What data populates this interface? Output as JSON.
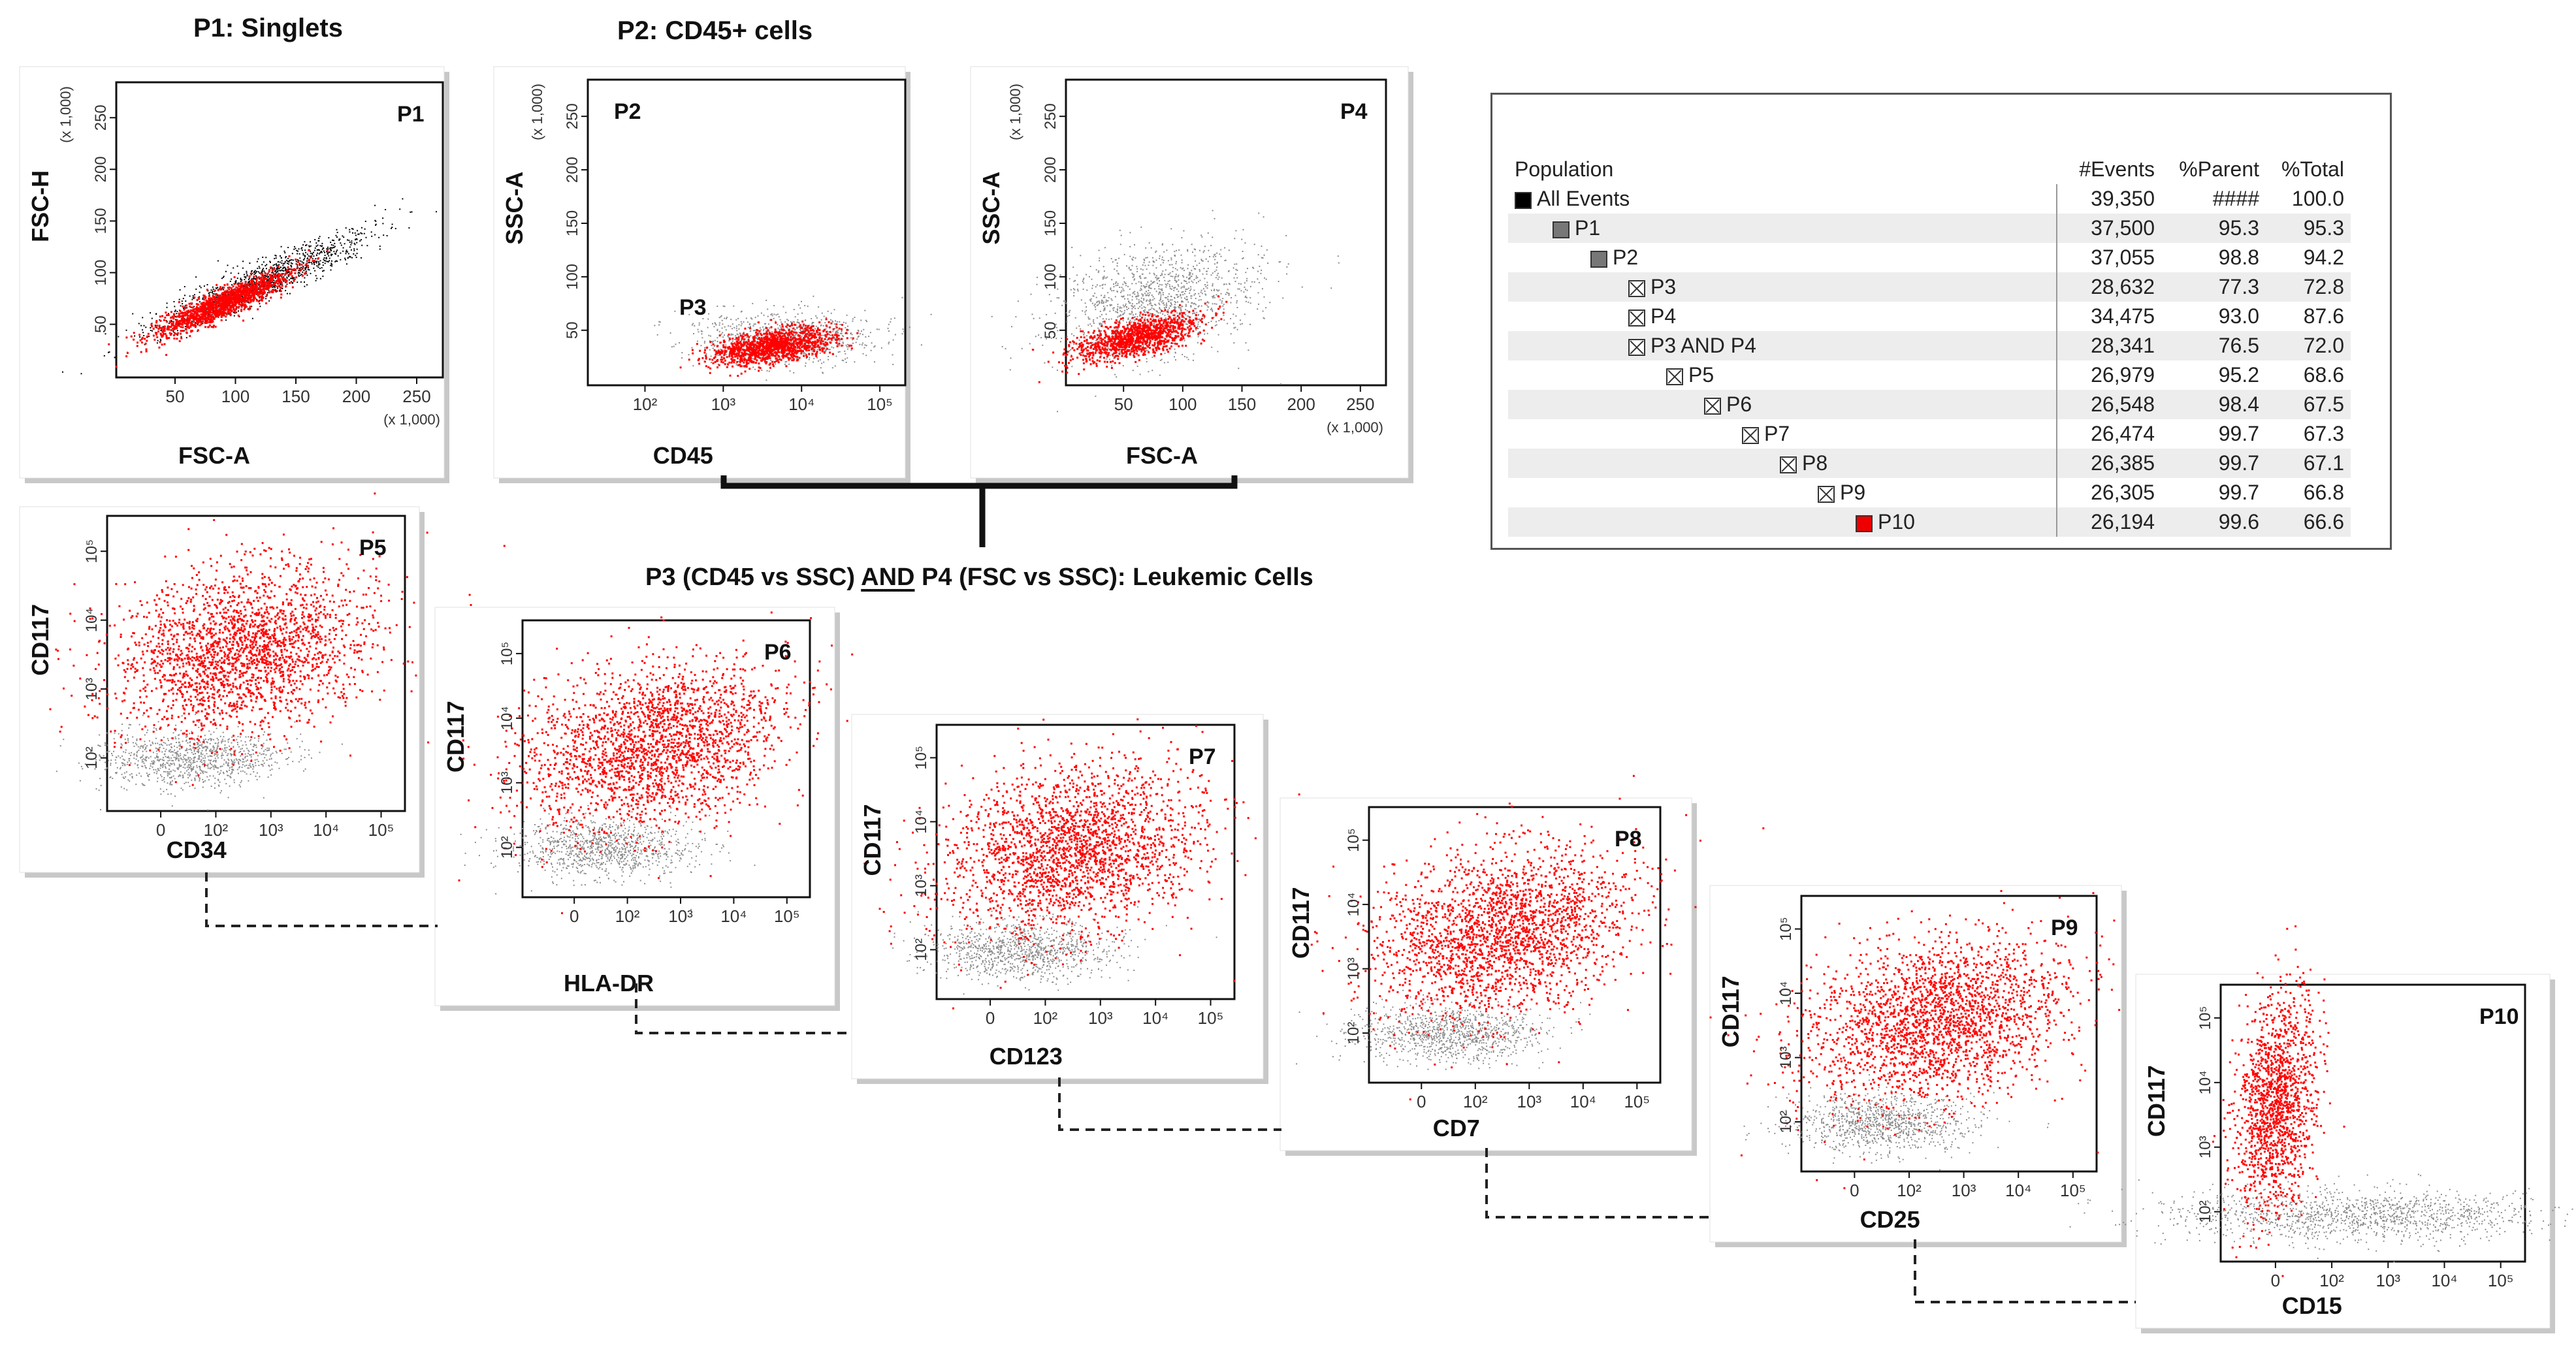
{
  "titles": {
    "p1": "P1: Singlets",
    "p2": "P2: CD45+ cells",
    "combined": "P3 (CD45 vs SSC) AND P4 (FSC vs SSC): Leukemic Cells",
    "combined_underline_word": "AND"
  },
  "colors": {
    "gated": "#ff0000",
    "ungated": "#8c8c8c",
    "black_events": "#000000"
  },
  "plots": [
    {
      "id": "p1",
      "gate": "P1",
      "xlabel": "FSC-A",
      "ylabel": "FSC-H",
      "x_scale": "linear",
      "y_scale": "linear",
      "x_ticks": [
        "50",
        "100",
        "150",
        "200",
        "250"
      ],
      "y_ticks": [
        "50",
        "100",
        "150",
        "200",
        "250"
      ],
      "x_unit": "(x 1,000)",
      "y_unit": "(x 1,000)",
      "other_gates": []
    },
    {
      "id": "p2",
      "gate": "P2",
      "xlabel": "CD45",
      "ylabel": "SSC-A",
      "x_scale": "log",
      "y_scale": "linear",
      "x_ticks": [
        "10²",
        "10³",
        "10⁴",
        "10⁵"
      ],
      "y_ticks": [
        "50",
        "100",
        "150",
        "200",
        "250"
      ],
      "x_unit": "",
      "y_unit": "(x 1,000)",
      "other_gates": [
        "P3"
      ]
    },
    {
      "id": "p4",
      "gate": "P4",
      "xlabel": "FSC-A",
      "ylabel": "SSC-A",
      "x_scale": "linear",
      "y_scale": "linear",
      "x_ticks": [
        "50",
        "100",
        "150",
        "200",
        "250"
      ],
      "y_ticks": [
        "50",
        "100",
        "150",
        "200",
        "250"
      ],
      "x_unit": "(x 1,000)",
      "y_unit": "(x 1,000)",
      "other_gates": []
    },
    {
      "id": "p5",
      "gate": "P5",
      "xlabel": "CD34",
      "ylabel": "CD117",
      "x_scale": "log",
      "y_scale": "log",
      "x_ticks": [
        "0",
        "10²",
        "10³",
        "10⁴",
        "10⁵"
      ],
      "y_ticks": [
        "10²",
        "10³",
        "10⁴",
        "10⁵"
      ],
      "x_unit": "",
      "y_unit": "",
      "other_gates": []
    },
    {
      "id": "p6",
      "gate": "P6",
      "xlabel": "HLA-DR",
      "ylabel": "CD117",
      "x_scale": "log",
      "y_scale": "log",
      "x_ticks": [
        "0",
        "10²",
        "10³",
        "10⁴",
        "10⁵"
      ],
      "y_ticks": [
        "10²",
        "10³",
        "10⁴",
        "10⁵"
      ],
      "x_unit": "",
      "y_unit": "",
      "other_gates": []
    },
    {
      "id": "p7",
      "gate": "P7",
      "xlabel": "CD123",
      "ylabel": "CD117",
      "x_scale": "log",
      "y_scale": "log",
      "x_ticks": [
        "0",
        "10²",
        "10³",
        "10⁴",
        "10⁵"
      ],
      "y_ticks": [
        "10²",
        "10³",
        "10⁴",
        "10⁵"
      ],
      "x_unit": "",
      "y_unit": "",
      "other_gates": []
    },
    {
      "id": "p8",
      "gate": "P8",
      "xlabel": "CD7",
      "ylabel": "CD117",
      "x_scale": "log",
      "y_scale": "log",
      "x_ticks": [
        "0",
        "10²",
        "10³",
        "10⁴",
        "10⁵"
      ],
      "y_ticks": [
        "10²",
        "10³",
        "10⁴",
        "10⁵"
      ],
      "x_unit": "",
      "y_unit": "",
      "other_gates": []
    },
    {
      "id": "p9",
      "gate": "P9",
      "xlabel": "CD25",
      "ylabel": "CD117",
      "x_scale": "log",
      "y_scale": "log",
      "x_ticks": [
        "0",
        "10²",
        "10³",
        "10⁴",
        "10⁵"
      ],
      "y_ticks": [
        "10²",
        "10³",
        "10⁴",
        "10⁵"
      ],
      "x_unit": "",
      "y_unit": "",
      "other_gates": []
    },
    {
      "id": "p10",
      "gate": "P10",
      "xlabel": "CD15",
      "ylabel": "CD117",
      "x_scale": "log",
      "y_scale": "log",
      "x_ticks": [
        "0",
        "10²",
        "10³",
        "10⁴",
        "10⁵"
      ],
      "y_ticks": [
        "10²",
        "10³",
        "10⁴",
        "10⁵"
      ],
      "x_unit": "",
      "y_unit": "",
      "other_gates": []
    }
  ],
  "hierarchy": {
    "headers": {
      "population": "Population",
      "events": "#Events",
      "parent": "%Parent",
      "total": "%Total"
    },
    "rows": [
      {
        "name": "All Events",
        "indent": 0,
        "marker": "black",
        "events": "39,350",
        "parent": "####",
        "total": "100.0"
      },
      {
        "name": "P1",
        "indent": 1,
        "marker": "gray",
        "events": "37,500",
        "parent": "95.3",
        "total": "95.3"
      },
      {
        "name": "P2",
        "indent": 2,
        "marker": "gray",
        "events": "37,055",
        "parent": "98.8",
        "total": "94.2"
      },
      {
        "name": "P3",
        "indent": 3,
        "marker": "x",
        "events": "28,632",
        "parent": "77.3",
        "total": "72.8"
      },
      {
        "name": "P4",
        "indent": 3,
        "marker": "x",
        "events": "34,475",
        "parent": "93.0",
        "total": "87.6"
      },
      {
        "name": "P3 AND P4",
        "indent": 3,
        "marker": "x",
        "events": "28,341",
        "parent": "76.5",
        "total": "72.0"
      },
      {
        "name": "P5",
        "indent": 4,
        "marker": "x",
        "events": "26,979",
        "parent": "95.2",
        "total": "68.6"
      },
      {
        "name": "P6",
        "indent": 5,
        "marker": "x",
        "events": "26,548",
        "parent": "98.4",
        "total": "67.5"
      },
      {
        "name": "P7",
        "indent": 6,
        "marker": "x",
        "events": "26,474",
        "parent": "99.7",
        "total": "67.3"
      },
      {
        "name": "P8",
        "indent": 7,
        "marker": "x",
        "events": "26,385",
        "parent": "99.7",
        "total": "67.1"
      },
      {
        "name": "P9",
        "indent": 8,
        "marker": "x",
        "events": "26,305",
        "parent": "99.7",
        "total": "66.8"
      },
      {
        "name": "P10",
        "indent": 9,
        "marker": "red",
        "events": "26,194",
        "parent": "99.6",
        "total": "66.6"
      }
    ]
  }
}
